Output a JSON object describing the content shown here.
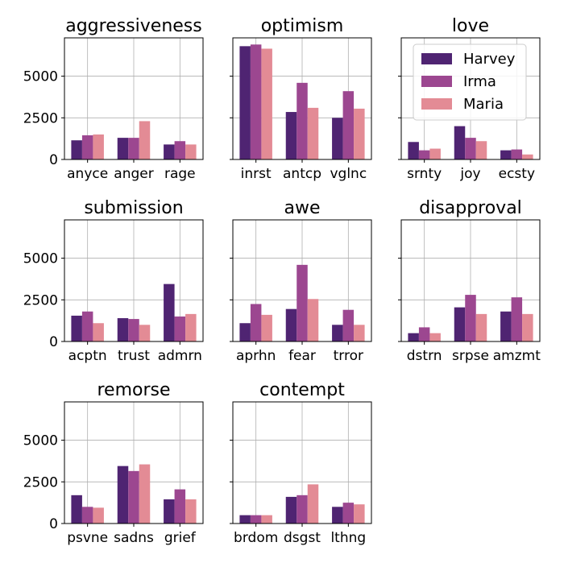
{
  "colors": {
    "Harvey": "#4f2472",
    "Irma": "#9c4790",
    "Maria": "#e38b95",
    "grid": "#b0b0b0",
    "frame": "#000000",
    "legend_border": "#cccccc"
  },
  "chart_data": [
    {
      "type": "bar",
      "title": "aggressiveness",
      "categories": [
        "anyce",
        "anger",
        "rage"
      ],
      "ylim": [
        0,
        7300
      ],
      "yticks": [
        0,
        2500,
        5000
      ],
      "series": [
        {
          "name": "Harvey",
          "values": [
            1150,
            1300,
            900
          ]
        },
        {
          "name": "Irma",
          "values": [
            1450,
            1300,
            1100
          ]
        },
        {
          "name": "Maria",
          "values": [
            1500,
            2300,
            900
          ]
        }
      ]
    },
    {
      "type": "bar",
      "title": "optimism",
      "categories": [
        "inrst",
        "antcp",
        "vglnc"
      ],
      "ylim": [
        0,
        7300
      ],
      "yticks": [
        0,
        2500,
        5000
      ],
      "series": [
        {
          "name": "Harvey",
          "values": [
            6800,
            2850,
            2500
          ]
        },
        {
          "name": "Irma",
          "values": [
            6900,
            4600,
            4100
          ]
        },
        {
          "name": "Maria",
          "values": [
            6650,
            3100,
            3050
          ]
        }
      ]
    },
    {
      "type": "bar",
      "title": "love",
      "categories": [
        "srnty",
        "joy",
        "ecsty"
      ],
      "ylim": [
        0,
        7300
      ],
      "yticks": [
        0,
        2500,
        5000
      ],
      "series": [
        {
          "name": "Harvey",
          "values": [
            1050,
            2000,
            550
          ]
        },
        {
          "name": "Irma",
          "values": [
            550,
            1300,
            600
          ]
        },
        {
          "name": "Maria",
          "values": [
            650,
            1100,
            300
          ]
        }
      ]
    },
    {
      "type": "bar",
      "title": "submission",
      "categories": [
        "acptn",
        "trust",
        "admrn"
      ],
      "ylim": [
        0,
        7300
      ],
      "yticks": [
        0,
        2500,
        5000
      ],
      "series": [
        {
          "name": "Harvey",
          "values": [
            1550,
            1400,
            3450
          ]
        },
        {
          "name": "Irma",
          "values": [
            1800,
            1350,
            1500
          ]
        },
        {
          "name": "Maria",
          "values": [
            1100,
            1000,
            1650
          ]
        }
      ]
    },
    {
      "type": "bar",
      "title": "awe",
      "categories": [
        "aprhn",
        "fear",
        "trror"
      ],
      "ylim": [
        0,
        7300
      ],
      "yticks": [
        0,
        2500,
        5000
      ],
      "series": [
        {
          "name": "Harvey",
          "values": [
            1100,
            1950,
            1000
          ]
        },
        {
          "name": "Irma",
          "values": [
            2250,
            4600,
            1900
          ]
        },
        {
          "name": "Maria",
          "values": [
            1600,
            2550,
            1000
          ]
        }
      ]
    },
    {
      "type": "bar",
      "title": "disapproval",
      "categories": [
        "dstrn",
        "srpse",
        "amzmt"
      ],
      "ylim": [
        0,
        7300
      ],
      "yticks": [
        0,
        2500,
        5000
      ],
      "series": [
        {
          "name": "Harvey",
          "values": [
            500,
            2050,
            1800
          ]
        },
        {
          "name": "Irma",
          "values": [
            850,
            2800,
            2650
          ]
        },
        {
          "name": "Maria",
          "values": [
            500,
            1650,
            1650
          ]
        }
      ]
    },
    {
      "type": "bar",
      "title": "remorse",
      "categories": [
        "psvne",
        "sadns",
        "grief"
      ],
      "ylim": [
        0,
        7300
      ],
      "yticks": [
        0,
        2500,
        5000
      ],
      "series": [
        {
          "name": "Harvey",
          "values": [
            1700,
            3450,
            1450
          ]
        },
        {
          "name": "Irma",
          "values": [
            1000,
            3150,
            2050
          ]
        },
        {
          "name": "Maria",
          "values": [
            950,
            3550,
            1450
          ]
        }
      ]
    },
    {
      "type": "bar",
      "title": "contempt",
      "categories": [
        "brdom",
        "dsgst",
        "lthng"
      ],
      "ylim": [
        0,
        7300
      ],
      "yticks": [
        0,
        2500,
        5000
      ],
      "series": [
        {
          "name": "Harvey",
          "values": [
            500,
            1600,
            1000
          ]
        },
        {
          "name": "Irma",
          "values": [
            500,
            1700,
            1250
          ]
        },
        {
          "name": "Maria",
          "values": [
            500,
            2350,
            1150
          ]
        }
      ]
    }
  ],
  "legend": {
    "location": "upper-right of love panel",
    "entries": [
      "Harvey",
      "Irma",
      "Maria"
    ]
  }
}
